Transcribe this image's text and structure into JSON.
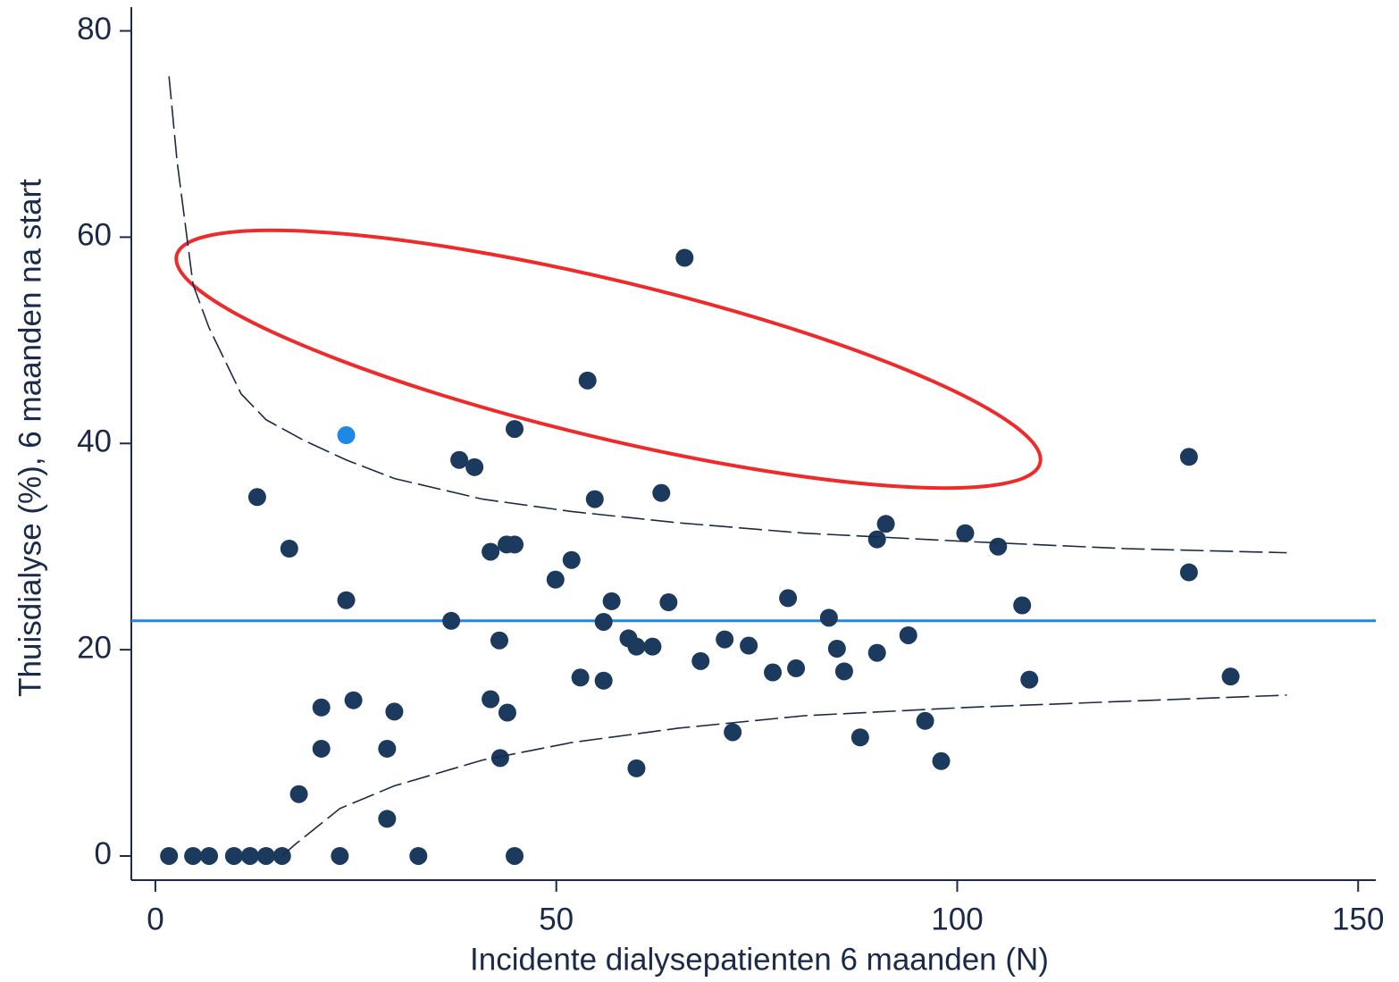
{
  "chart_data": {
    "type": "scatter",
    "xlabel": "Incidente dialysepatienten 6 maanden (N)",
    "ylabel": "Thuisdialyse (%), 6 maanden na start",
    "xlim": [
      -3,
      152.2
    ],
    "ylim": [
      -2.34,
      82.3
    ],
    "xticks": [
      0,
      50,
      100,
      150
    ],
    "yticks": [
      0,
      20,
      40,
      60,
      80
    ],
    "hline": {
      "value": 22.8,
      "color": "#1e88e5"
    },
    "series": [
      {
        "type": "scatter",
        "color": "#1b3a5e",
        "x": [
          1.7,
          4.7,
          6.7,
          9.8,
          11.8,
          13.8,
          15.8,
          23.0,
          32.8,
          44.8,
          12.7,
          16.7,
          23.8,
          17.9,
          20.7,
          20.7,
          24.7,
          28.9,
          28.9,
          29.8,
          36.9,
          37.9,
          39.8,
          41.8,
          43.8,
          44.8,
          44.8,
          42.9,
          41.8,
          43.9,
          43.0,
          49.9,
          51.9,
          53.9,
          54.8,
          53.0,
          55.9,
          55.9,
          56.9,
          59.0,
          60.0,
          62.0,
          60.0,
          63.1,
          64.0,
          66.0,
          68.0,
          71.0,
          72.0,
          74.0,
          77.0,
          78.9,
          79.9,
          84.0,
          85.0,
          85.9,
          87.9,
          90.0,
          91.1,
          90.0,
          93.9,
          96.0,
          98.0,
          101.0,
          105.1,
          108.1,
          109.0,
          128.9,
          128.9,
          134.1
        ],
        "values": [
          0,
          0,
          0,
          0,
          0,
          0,
          0,
          0,
          0,
          0,
          34.8,
          29.8,
          24.8,
          6.0,
          14.4,
          10.4,
          15.1,
          10.4,
          3.6,
          14.0,
          22.8,
          38.4,
          37.7,
          29.5,
          30.2,
          30.2,
          41.4,
          20.9,
          15.2,
          13.9,
          9.5,
          26.8,
          28.7,
          46.1,
          34.6,
          17.3,
          17.0,
          22.7,
          24.7,
          21.1,
          20.3,
          20.3,
          8.5,
          35.2,
          24.6,
          58.0,
          18.9,
          21.0,
          12.0,
          20.4,
          17.8,
          25.0,
          18.2,
          23.1,
          20.1,
          17.9,
          11.5,
          30.7,
          32.2,
          19.7,
          21.4,
          13.1,
          9.2,
          31.3,
          30.0,
          24.3,
          17.1,
          38.7,
          27.5,
          17.4
        ]
      },
      {
        "type": "scatter",
        "color": "#1e88e5",
        "x": [
          23.8
        ],
        "values": [
          40.8
        ]
      },
      {
        "type": "line",
        "color": "#1b2a44",
        "dashed": true,
        "x": [
          1.7,
          2.7,
          4.7,
          6.7,
          10.7,
          13.8,
          18.5,
          23.8,
          29.8,
          40.8,
          51.9,
          65.3,
          80.9,
          101,
          121,
          141.1
        ],
        "values": [
          75.6,
          67.4,
          55.4,
          51.2,
          44.8,
          42.3,
          40.3,
          38.4,
          36.6,
          34.6,
          33.4,
          32.3,
          31.3,
          30.5,
          29.8,
          29.4
        ]
      },
      {
        "type": "line",
        "color": "#1b2a44",
        "dashed": true,
        "x": [
          15.8,
          17.4,
          23,
          29.8,
          40.8,
          51.9,
          65.3,
          80.9,
          101,
          121,
          141.1
        ],
        "values": [
          0,
          1.1,
          4.6,
          6.8,
          9.3,
          11.0,
          12.4,
          13.6,
          14.4,
          15.0,
          15.6
        ]
      }
    ]
  }
}
